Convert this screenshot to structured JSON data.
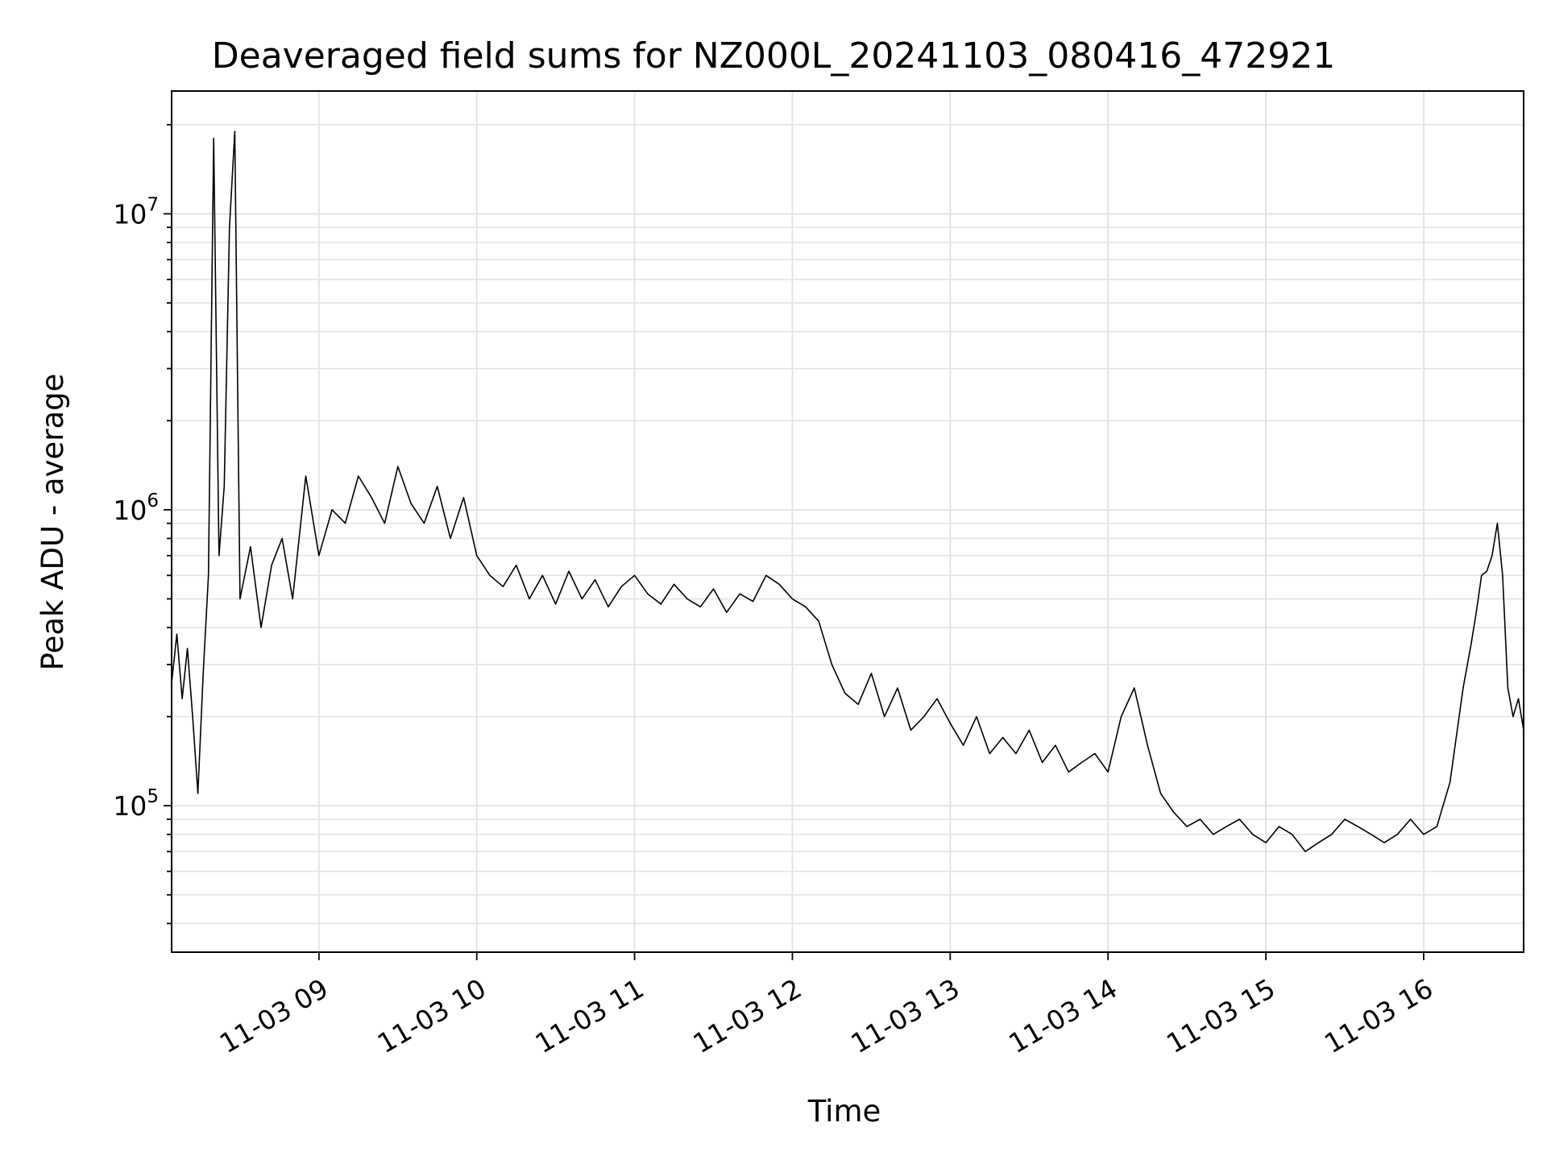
{
  "chart_data": {
    "type": "line",
    "title": "Deaveraged field sums for NZ000L_20241103_080416_472921",
    "xlabel": "Time",
    "ylabel": "Peak ADU - average",
    "yscale": "log",
    "ylim": [
      32000,
      26000000
    ],
    "xlim": [
      "2024-11-03 08:04",
      "2024-11-03 16:38"
    ],
    "grid": true,
    "line_color": "#000000",
    "x_ticks": [
      {
        "value": "2024-11-03 09:00",
        "label": "11-03 09"
      },
      {
        "value": "2024-11-03 10:00",
        "label": "11-03 10"
      },
      {
        "value": "2024-11-03 11:00",
        "label": "11-03 11"
      },
      {
        "value": "2024-11-03 12:00",
        "label": "11-03 12"
      },
      {
        "value": "2024-11-03 13:00",
        "label": "11-03 13"
      },
      {
        "value": "2024-11-03 14:00",
        "label": "11-03 14"
      },
      {
        "value": "2024-11-03 15:00",
        "label": "11-03 15"
      },
      {
        "value": "2024-11-03 16:00",
        "label": "11-03 16"
      }
    ],
    "y_ticks": [
      {
        "value": 100000,
        "base": "10",
        "exp": "5"
      },
      {
        "value": 1000000,
        "base": "10",
        "exp": "6"
      },
      {
        "value": 10000000,
        "base": "10",
        "exp": "7"
      }
    ],
    "series": [
      {
        "x": [
          "2024-11-03 08:04",
          "2024-11-03 08:06",
          "2024-11-03 08:08",
          "2024-11-03 08:10",
          "2024-11-03 08:12",
          "2024-11-03 08:14",
          "2024-11-03 08:16",
          "2024-11-03 08:18",
          "2024-11-03 08:20",
          "2024-11-03 08:22",
          "2024-11-03 08:24",
          "2024-11-03 08:26",
          "2024-11-03 08:28",
          "2024-11-03 08:30",
          "2024-11-03 08:34",
          "2024-11-03 08:38",
          "2024-11-03 08:42",
          "2024-11-03 08:46",
          "2024-11-03 08:50",
          "2024-11-03 08:55",
          "2024-11-03 09:00",
          "2024-11-03 09:05",
          "2024-11-03 09:10",
          "2024-11-03 09:15",
          "2024-11-03 09:20",
          "2024-11-03 09:25",
          "2024-11-03 09:30",
          "2024-11-03 09:35",
          "2024-11-03 09:40",
          "2024-11-03 09:45",
          "2024-11-03 09:50",
          "2024-11-03 09:55",
          "2024-11-03 10:00",
          "2024-11-03 10:05",
          "2024-11-03 10:10",
          "2024-11-03 10:15",
          "2024-11-03 10:20",
          "2024-11-03 10:25",
          "2024-11-03 10:30",
          "2024-11-03 10:35",
          "2024-11-03 10:40",
          "2024-11-03 10:45",
          "2024-11-03 10:50",
          "2024-11-03 10:55",
          "2024-11-03 11:00",
          "2024-11-03 11:05",
          "2024-11-03 11:10",
          "2024-11-03 11:15",
          "2024-11-03 11:20",
          "2024-11-03 11:25",
          "2024-11-03 11:30",
          "2024-11-03 11:35",
          "2024-11-03 11:40",
          "2024-11-03 11:45",
          "2024-11-03 11:50",
          "2024-11-03 11:55",
          "2024-11-03 12:00",
          "2024-11-03 12:05",
          "2024-11-03 12:10",
          "2024-11-03 12:15",
          "2024-11-03 12:20",
          "2024-11-03 12:25",
          "2024-11-03 12:30",
          "2024-11-03 12:35",
          "2024-11-03 12:40",
          "2024-11-03 12:45",
          "2024-11-03 12:50",
          "2024-11-03 12:55",
          "2024-11-03 13:00",
          "2024-11-03 13:05",
          "2024-11-03 13:10",
          "2024-11-03 13:15",
          "2024-11-03 13:20",
          "2024-11-03 13:25",
          "2024-11-03 13:30",
          "2024-11-03 13:35",
          "2024-11-03 13:40",
          "2024-11-03 13:45",
          "2024-11-03 13:50",
          "2024-11-03 13:55",
          "2024-11-03 14:00",
          "2024-11-03 14:05",
          "2024-11-03 14:10",
          "2024-11-03 14:15",
          "2024-11-03 14:20",
          "2024-11-03 14:25",
          "2024-11-03 14:30",
          "2024-11-03 14:35",
          "2024-11-03 14:40",
          "2024-11-03 14:45",
          "2024-11-03 14:50",
          "2024-11-03 14:55",
          "2024-11-03 15:00",
          "2024-11-03 15:05",
          "2024-11-03 15:10",
          "2024-11-03 15:15",
          "2024-11-03 15:20",
          "2024-11-03 15:25",
          "2024-11-03 15:30",
          "2024-11-03 15:35",
          "2024-11-03 15:40",
          "2024-11-03 15:45",
          "2024-11-03 15:50",
          "2024-11-03 15:55",
          "2024-11-03 16:00",
          "2024-11-03 16:05",
          "2024-11-03 16:10",
          "2024-11-03 16:15",
          "2024-11-03 16:18",
          "2024-11-03 16:20",
          "2024-11-03 16:22",
          "2024-11-03 16:24",
          "2024-11-03 16:26",
          "2024-11-03 16:28",
          "2024-11-03 16:30",
          "2024-11-03 16:32",
          "2024-11-03 16:34",
          "2024-11-03 16:36",
          "2024-11-03 16:38"
        ],
        "y": [
          260000,
          380000,
          230000,
          340000,
          200000,
          110000,
          280000,
          600000,
          18000000,
          700000,
          1200000,
          9000000,
          19000000,
          500000,
          750000,
          400000,
          650000,
          800000,
          500000,
          1300000,
          700000,
          1000000,
          900000,
          1300000,
          1100000,
          900000,
          1400000,
          1050000,
          900000,
          1200000,
          800000,
          1100000,
          700000,
          600000,
          550000,
          650000,
          500000,
          600000,
          480000,
          620000,
          500000,
          580000,
          470000,
          550000,
          600000,
          520000,
          480000,
          560000,
          500000,
          470000,
          540000,
          450000,
          520000,
          490000,
          600000,
          560000,
          500000,
          470000,
          420000,
          300000,
          240000,
          220000,
          280000,
          200000,
          250000,
          180000,
          200000,
          230000,
          190000,
          160000,
          200000,
          150000,
          170000,
          150000,
          180000,
          140000,
          160000,
          130000,
          140000,
          150000,
          130000,
          200000,
          250000,
          160000,
          110000,
          95000,
          85000,
          90000,
          80000,
          85000,
          90000,
          80000,
          75000,
          85000,
          80000,
          70000,
          75000,
          80000,
          90000,
          85000,
          80000,
          75000,
          80000,
          90000,
          80000,
          85000,
          120000,
          250000,
          350000,
          450000,
          600000,
          620000,
          700000,
          900000,
          600000,
          250000,
          200000,
          230000,
          180000
        ]
      }
    ]
  }
}
